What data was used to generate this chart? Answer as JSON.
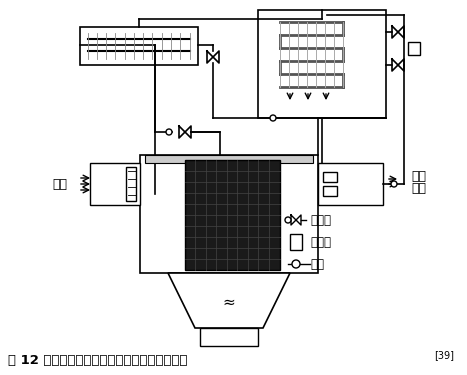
{
  "title": "图 12 直接蒸发冷却和半导体制冷相结合的系统",
  "title_superscript": "[39]",
  "bg_color": "#ffffff",
  "line_color": "#000000",
  "fig_width": 4.67,
  "fig_height": 3.75,
  "dpi": 100,
  "legend_items": [
    "节流阀",
    "流量计",
    "热阻"
  ],
  "left_label": "空气",
  "right_label1": "空气",
  "right_label2": "供给"
}
